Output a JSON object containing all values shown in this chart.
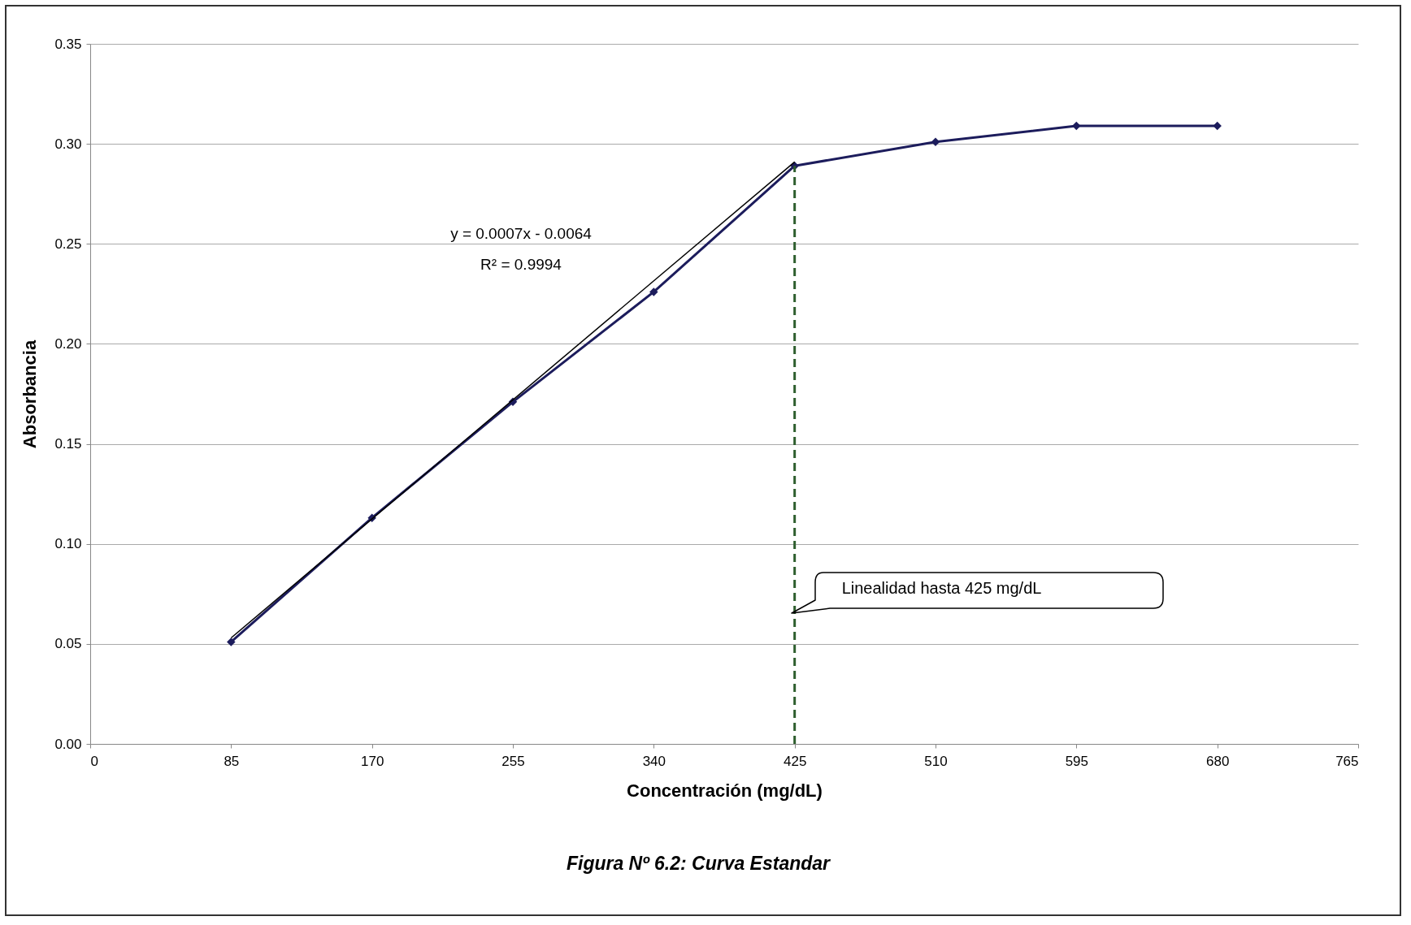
{
  "chart_data": {
    "type": "line",
    "xlabel": "Concentración (mg/dL)",
    "ylabel": "Absorbancia",
    "x": [
      85,
      170,
      255,
      340,
      425,
      510,
      595,
      680
    ],
    "series": [
      {
        "color": "#1c1c5c",
        "values": [
          0.051,
          0.113,
          0.171,
          0.226,
          0.289,
          0.301,
          0.309,
          0.309
        ],
        "marker": "diamond"
      },
      {
        "type": "line",
        "color": "#000000",
        "x": [
          85,
          425
        ],
        "values": [
          0.053,
          0.291
        ],
        "marker": "none"
      }
    ],
    "xlim": [
      0,
      765
    ],
    "xticks": [
      0,
      85,
      170,
      255,
      340,
      425,
      510,
      595,
      680,
      765
    ],
    "ylim": [
      0,
      0.35
    ],
    "yticks": [
      {
        "value": 0,
        "label": "0.00"
      },
      {
        "value": 0.05,
        "label": "0.05"
      },
      {
        "value": 0.1,
        "label": "0.10"
      },
      {
        "value": 0.15,
        "label": "0.15"
      },
      {
        "value": 0.2,
        "label": "0.20"
      },
      {
        "value": 0.25,
        "label": "0.25"
      },
      {
        "value": 0.3,
        "label": "0.30"
      },
      {
        "value": 0.35,
        "label": "0.35"
      }
    ],
    "ref_lines": [
      {
        "axis": "x",
        "value": 425,
        "color": "#2e5e2e",
        "line_style": "dashed"
      }
    ],
    "annotations": [
      "y = 0.0007x - 0.0064",
      "R² = 0.9994",
      "Linealidad hasta 425 mg/dL",
      "Figura Nº 6.2: Curva Estandar"
    ],
    "grid": "y"
  }
}
